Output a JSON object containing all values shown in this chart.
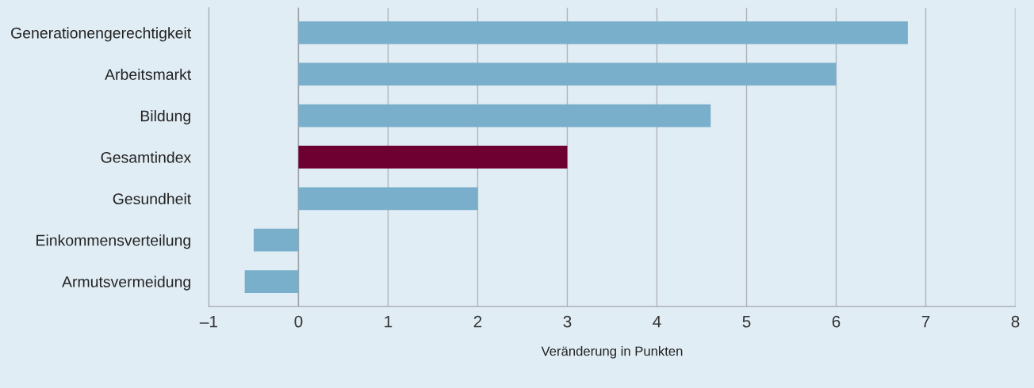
{
  "chart_data": {
    "type": "bar",
    "orientation": "horizontal",
    "categories": [
      "Generationengerechtigkeit",
      "Arbeitsmarkt",
      "Bildung",
      "Gesamtindex",
      "Gesundheit",
      "Einkommensverteilung",
      "Armutsvermeidung"
    ],
    "values": [
      6.8,
      6.0,
      4.6,
      3.0,
      2.0,
      -0.5,
      -0.6
    ],
    "colors": [
      "#7aafcb",
      "#7aafcb",
      "#7aafcb",
      "#6d0030",
      "#7aafcb",
      "#7aafcb",
      "#7aafcb"
    ],
    "xlim": [
      -1,
      8
    ],
    "xticks": [
      {
        "value": -1,
        "label": "–1"
      },
      0,
      1,
      2,
      3,
      4,
      5,
      6,
      7,
      8
    ],
    "xlabel": "Veränderung in Punkten",
    "grid": "x"
  }
}
